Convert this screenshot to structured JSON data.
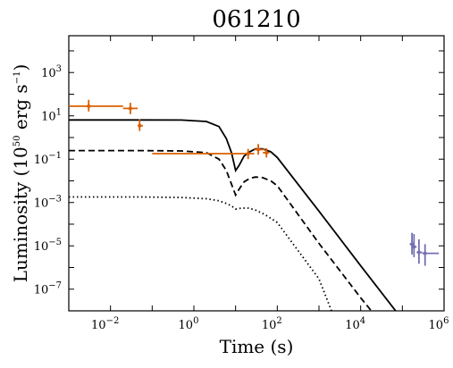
{
  "chart_data": {
    "type": "line",
    "title": "061210",
    "xlabel": "Time (s)",
    "ylabel": "Luminosity (10",
    "ylabel_sup": "50",
    "ylabel_tail": " erg s",
    "ylabel_sup2": "−1",
    "ylabel_close": ")",
    "xscale": "log",
    "yscale": "log",
    "xlim": [
      0.001,
      1000000
    ],
    "ylim": [
      1e-08,
      50000
    ],
    "grid": false,
    "x_ticks": [
      {
        "value": 0.01,
        "base": "10",
        "exp": "−2"
      },
      {
        "value": 1,
        "base": "10",
        "exp": "0"
      },
      {
        "value": 100,
        "base": "10",
        "exp": "2"
      },
      {
        "value": 10000,
        "base": "10",
        "exp": "4"
      },
      {
        "value": 1000000,
        "base": "10",
        "exp": "6"
      }
    ],
    "y_ticks": [
      {
        "value": 1e-07,
        "base": "10",
        "exp": "−7"
      },
      {
        "value": 1e-05,
        "base": "10",
        "exp": "−5"
      },
      {
        "value": 0.001,
        "base": "10",
        "exp": "−3"
      },
      {
        "value": 0.1,
        "base": "10",
        "exp": "−1"
      },
      {
        "value": 10,
        "base": "10",
        "exp": "1"
      },
      {
        "value": 1000,
        "base": "10",
        "exp": "3"
      }
    ],
    "series": [
      {
        "style": "solid",
        "color": "#000000",
        "points": [
          [
            0.001,
            6.5
          ],
          [
            0.05,
            6.5
          ],
          [
            0.5,
            6.4
          ],
          [
            2,
            5.5
          ],
          [
            4,
            3.2
          ],
          [
            6,
            0.9
          ],
          [
            8,
            0.2
          ],
          [
            10,
            0.03
          ],
          [
            12,
            0.05
          ],
          [
            16,
            0.14
          ],
          [
            22,
            0.22
          ],
          [
            30,
            0.3
          ],
          [
            45,
            0.3
          ],
          [
            70,
            0.22
          ],
          [
            100,
            0.12
          ],
          [
            1000,
            0.0004
          ],
          [
            10000,
            1.2e-06
          ],
          [
            100000,
            4e-09
          ]
        ]
      },
      {
        "style": "dashed",
        "color": "#000000",
        "points": [
          [
            0.001,
            0.25
          ],
          [
            0.05,
            0.25
          ],
          [
            0.5,
            0.24
          ],
          [
            2,
            0.2
          ],
          [
            4,
            0.1
          ],
          [
            6,
            0.03
          ],
          [
            8,
            0.007
          ],
          [
            10,
            0.0022
          ],
          [
            12,
            0.004
          ],
          [
            16,
            0.009
          ],
          [
            22,
            0.013
          ],
          [
            30,
            0.015
          ],
          [
            45,
            0.014
          ],
          [
            70,
            0.01
          ],
          [
            100,
            0.006
          ],
          [
            1000,
            1.3e-05
          ],
          [
            10000,
            4e-08
          ],
          [
            30000,
            3e-09
          ]
        ]
      },
      {
        "style": "dotted",
        "color": "#000000",
        "points": [
          [
            0.001,
            0.0018
          ],
          [
            0.05,
            0.0018
          ],
          [
            0.5,
            0.0017
          ],
          [
            2,
            0.0015
          ],
          [
            4,
            0.0012
          ],
          [
            6,
            0.0009
          ],
          [
            8,
            0.0007
          ],
          [
            10,
            0.0005
          ],
          [
            14,
            0.00055
          ],
          [
            20,
            0.00055
          ],
          [
            30,
            0.00045
          ],
          [
            50,
            0.00028
          ],
          [
            100,
            0.00012
          ],
          [
            1000,
            3e-07
          ],
          [
            2000,
            1e-08
          ]
        ]
      }
    ],
    "observations": [
      {
        "color": "#d95f02",
        "points": [
          {
            "x": 0.003,
            "y": 28,
            "x_lo": 0.001,
            "x_hi": 0.02,
            "y_lo": 16,
            "y_hi": 55
          },
          {
            "x": 0.03,
            "y": 22,
            "x_lo": 0.02,
            "x_hi": 0.045,
            "y_lo": 12,
            "y_hi": 40
          },
          {
            "x": 0.05,
            "y": 3.5,
            "x_lo": 0.045,
            "x_hi": 0.06,
            "y_lo": 2,
            "y_hi": 7
          },
          {
            "x": 20,
            "y": 0.18,
            "x_lo": 0.1,
            "x_hi": 28,
            "y_lo": 0.1,
            "y_hi": 0.3
          },
          {
            "x": 35,
            "y": 0.28,
            "x_lo": 28,
            "x_hi": 50,
            "y_lo": 0.16,
            "y_hi": 0.5
          },
          {
            "x": 55,
            "y": 0.2,
            "x_lo": 45,
            "x_hi": 65,
            "y_lo": 0.12,
            "y_hi": 0.32
          }
        ]
      },
      {
        "color": "#7570b3",
        "points": [
          {
            "x": 170000,
            "y": 1.2e-05,
            "x_lo": 150000,
            "x_hi": 190000,
            "y_lo": 4e-06,
            "y_hi": 4e-05
          },
          {
            "x": 190000,
            "y": 9e-06,
            "x_lo": 175000,
            "x_hi": 220000,
            "y_lo": 3e-06,
            "y_hi": 3.5e-05
          },
          {
            "x": 250000,
            "y": 5e-06,
            "x_lo": 220000,
            "x_hi": 300000,
            "y_lo": 1.5e-06,
            "y_hi": 2e-05
          },
          {
            "x": 350000,
            "y": 4.5e-06,
            "x_lo": 300000,
            "x_hi": 750000,
            "y_lo": 1.2e-06,
            "y_hi": 1.2e-05
          }
        ]
      }
    ]
  }
}
